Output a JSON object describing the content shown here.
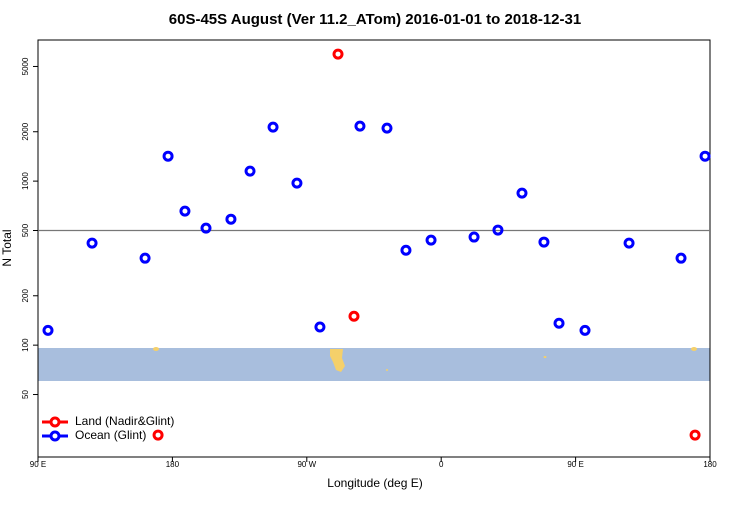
{
  "chart_data": {
    "type": "scatter",
    "title": "60S-45S August (Ver 11.2_ATom)   2016-01-01 to 2018-12-31",
    "x_label": "Longitude (deg E)",
    "y_label": "N Total",
    "xlim": [
      90,
      540
    ],
    "xticks": [
      {
        "value": 90,
        "label": "90 E"
      },
      180,
      {
        "value": 270,
        "label": "90 W"
      },
      {
        "value": 360,
        "label": "0"
      },
      {
        "value": 450,
        "label": "90 E"
      },
      {
        "value": 540,
        "label": "180"
      }
    ],
    "ylim": [
      20.8,
      7250
    ],
    "yticks": [
      50,
      100,
      200,
      500,
      1000,
      2000,
      5000
    ],
    "log_y": true,
    "hline": 500,
    "legend": "bottom-left",
    "series": [
      {
        "name": "Land (Nadir&Glint)",
        "color": "#ff0000",
        "x": [
          290.9,
          301.6,
          170.4,
          530
        ],
        "values": [
          5950,
          150,
          28.3,
          28.3
        ]
      },
      {
        "name": "Ocean (Glint)",
        "color": "#0000ff",
        "x": [
          96.7,
          126.2,
          161.7,
          177.1,
          188.4,
          202.5,
          219.2,
          232,
          247.4,
          263.4,
          278.8,
          305.6,
          323.7,
          336.4,
          353.2,
          382,
          398,
          414.1,
          428.8,
          438.9,
          456.3,
          485.8,
          520.6,
          536.7
        ],
        "values": [
          123,
          419,
          339,
          1419,
          656,
          517,
          586,
          1151,
          2133,
          972,
          129,
          2163,
          2103,
          379,
          437,
          456,
          503,
          845,
          425,
          136,
          123,
          419,
          339,
          1419
        ]
      }
    ]
  }
}
